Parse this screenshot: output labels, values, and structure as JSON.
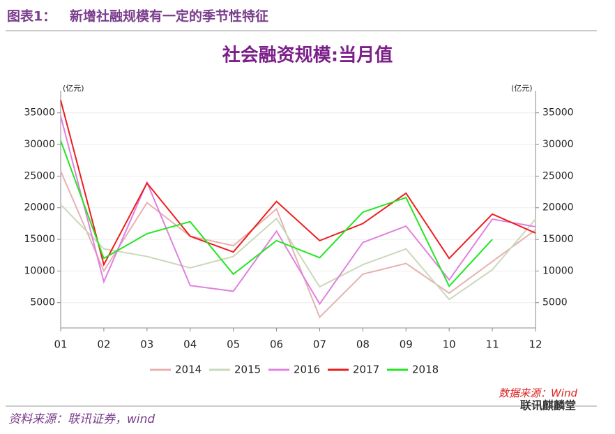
{
  "header": {
    "label": "图表1：",
    "title": "新增社融规模有一定的季节性特征"
  },
  "chart_data": {
    "type": "line",
    "title": "社会融资规模:当月值",
    "y_label": "(亿元)",
    "y2_label": "(亿元)",
    "categories": [
      "01",
      "02",
      "03",
      "04",
      "05",
      "06",
      "07",
      "08",
      "09",
      "10",
      "11",
      "12"
    ],
    "series": [
      {
        "name": "2014",
        "color": "#e6b1b1",
        "values": [
          25800,
          10000,
          20800,
          15500,
          14000,
          19800,
          2700,
          9500,
          11200,
          6500,
          11500,
          16500
        ]
      },
      {
        "name": "2015",
        "color": "#c9d9b9",
        "values": [
          20500,
          13500,
          12300,
          10500,
          12300,
          18300,
          7500,
          11000,
          13500,
          5500,
          10200,
          18200
        ]
      },
      {
        "name": "2016",
        "color": "#e080e0",
        "values": [
          34500,
          8300,
          24000,
          7700,
          6800,
          16300,
          4800,
          14500,
          17100,
          8600,
          18200,
          17000
        ]
      },
      {
        "name": "2017",
        "color": "#ee1c1c",
        "values": [
          37000,
          11000,
          23900,
          15500,
          13000,
          21000,
          14800,
          17500,
          22300,
          12000,
          19000,
          16000
        ]
      },
      {
        "name": "2018",
        "color": "#22e622",
        "values": [
          30600,
          12000,
          15900,
          17800,
          9500,
          14800,
          12100,
          19300,
          21600,
          7600,
          15000,
          null
        ]
      }
    ],
    "ylim": [
      1000,
      38500
    ],
    "yticks": [
      5000,
      10000,
      15000,
      20000,
      25000,
      30000,
      35000
    ],
    "y2lim": [
      1000,
      38500
    ],
    "y2ticks": [
      5000,
      10000,
      15000,
      20000,
      25000,
      30000,
      35000
    ],
    "grid": true,
    "legend": "bottom",
    "source_note": "数据来源：Wind"
  },
  "footer": "资料来源：联讯证券，wind",
  "watermark": "联讯麒麟堂"
}
